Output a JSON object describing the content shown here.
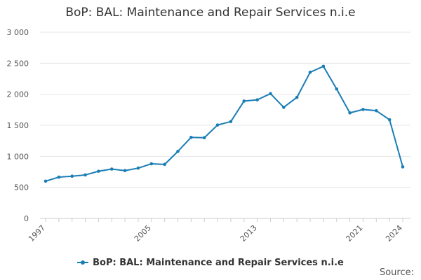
{
  "chart_data": {
    "type": "line",
    "title": "BoP: BAL: Maintenance and Repair Services n.i.e",
    "xlabel": "",
    "ylabel": "",
    "x": [
      1997,
      1998,
      1999,
      2000,
      2001,
      2002,
      2003,
      2004,
      2005,
      2006,
      2007,
      2008,
      2009,
      2010,
      2011,
      2012,
      2013,
      2014,
      2015,
      2016,
      2017,
      2018,
      2019,
      2020,
      2021,
      2022,
      2023,
      2024
    ],
    "series": [
      {
        "name": "BoP: BAL: Maintenance and Repair Services n.i.e",
        "color": "#1a7db5",
        "values": [
          600,
          665,
          680,
          700,
          760,
          795,
          770,
          810,
          880,
          870,
          1080,
          1305,
          1300,
          1505,
          1560,
          1890,
          1910,
          2010,
          1790,
          1950,
          2355,
          2450,
          2085,
          1700,
          1755,
          1735,
          1590,
          830
        ]
      }
    ],
    "xlim": [
      1997,
      2024
    ],
    "ylim": [
      0,
      3000
    ],
    "x_tick_labels": [
      "1997",
      "2005",
      "2013",
      "2021",
      "2024"
    ],
    "y_tick_labels": [
      "0",
      "500",
      "1 000",
      "1 500",
      "2 000",
      "2 500",
      "3 000"
    ],
    "grid": true,
    "legend_position": "bottom"
  },
  "footer": {
    "source_label": "Source:"
  }
}
